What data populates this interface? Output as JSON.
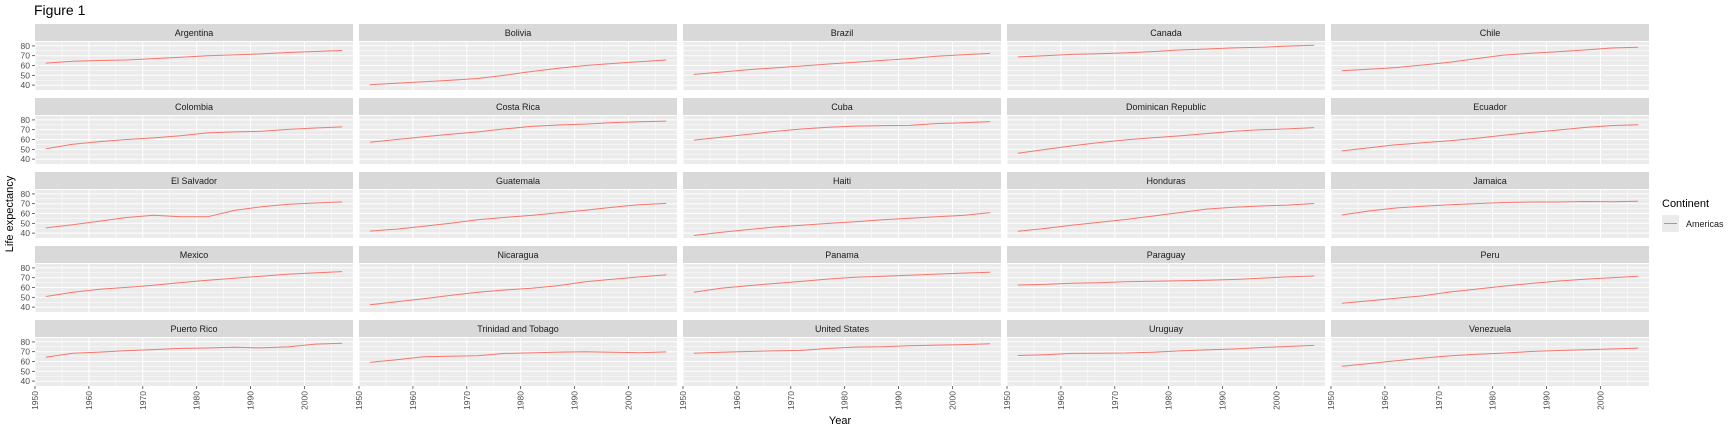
{
  "figure_title": "Figure 1",
  "colors": {
    "panel_bg": "#ebebeb",
    "strip_bg": "#d9d9d9",
    "grid": "#ffffff",
    "line": "#f8766d",
    "text": "#1a1a1a",
    "axis_text": "#4d4d4d"
  },
  "chart_data": {
    "type": "line",
    "layout": "facet-grid",
    "facet_columns": 5,
    "xlabel": "Year",
    "ylabel": "Life expectancy",
    "xlim": [
      1950,
      2009
    ],
    "ylim": [
      35,
      84
    ],
    "x_ticks": [
      1950,
      1960,
      1970,
      1980,
      1990,
      2000
    ],
    "x_tick_labels": [
      "1950",
      "1960",
      "1970",
      "1980",
      "1990",
      "2000"
    ],
    "y_ticks": [
      40,
      50,
      60,
      70,
      80
    ],
    "y_tick_labels": [
      "40",
      "50",
      "60",
      "70",
      "80"
    ],
    "grid": true,
    "legend": {
      "title": "Continent",
      "placement": "right",
      "entries": [
        {
          "label": "Americas",
          "color": "#f8766d"
        }
      ]
    },
    "x": [
      1952,
      1957,
      1962,
      1967,
      1972,
      1977,
      1982,
      1987,
      1992,
      1997,
      2002,
      2007
    ],
    "panels": [
      {
        "name": "Argentina",
        "values": [
          62.5,
          64.4,
          65.1,
          65.6,
          67.1,
          68.5,
          69.9,
          70.8,
          71.9,
          73.3,
          74.3,
          75.3
        ]
      },
      {
        "name": "Bolivia",
        "values": [
          40.4,
          41.9,
          43.4,
          45.0,
          46.7,
          50.0,
          53.9,
          57.3,
          59.96,
          62.1,
          63.9,
          65.6
        ]
      },
      {
        "name": "Brazil",
        "values": [
          50.9,
          53.3,
          55.7,
          57.6,
          59.5,
          61.5,
          63.3,
          65.2,
          67.1,
          69.4,
          71.0,
          72.4
        ]
      },
      {
        "name": "Canada",
        "values": [
          68.8,
          70.0,
          71.3,
          72.1,
          72.9,
          74.2,
          75.8,
          76.9,
          78.0,
          78.6,
          79.8,
          80.7
        ]
      },
      {
        "name": "Chile",
        "values": [
          54.7,
          56.1,
          57.9,
          60.5,
          63.4,
          67.1,
          70.6,
          72.5,
          74.1,
          75.8,
          77.9,
          78.6
        ]
      },
      {
        "name": "Colombia",
        "values": [
          50.6,
          55.1,
          57.9,
          60.0,
          61.6,
          63.8,
          66.7,
          67.8,
          68.4,
          70.3,
          71.7,
          72.9
        ]
      },
      {
        "name": "Costa Rica",
        "values": [
          57.2,
          60.0,
          62.8,
          65.4,
          67.8,
          70.8,
          73.4,
          74.8,
          75.7,
          77.3,
          78.1,
          78.8
        ]
      },
      {
        "name": "Cuba",
        "values": [
          59.4,
          62.3,
          65.2,
          68.3,
          70.7,
          72.6,
          73.7,
          74.2,
          74.4,
          76.2,
          77.2,
          78.3
        ]
      },
      {
        "name": "Dominican Republic",
        "values": [
          45.9,
          49.8,
          53.5,
          56.8,
          59.6,
          61.8,
          63.7,
          66.0,
          68.5,
          69.96,
          70.8,
          72.2
        ]
      },
      {
        "name": "Ecuador",
        "values": [
          48.4,
          51.4,
          54.6,
          56.7,
          58.8,
          61.3,
          64.3,
          67.2,
          69.6,
          72.3,
          74.2,
          75.0
        ]
      },
      {
        "name": "El Salvador",
        "values": [
          45.3,
          48.6,
          52.3,
          55.9,
          58.2,
          56.7,
          56.6,
          63.2,
          66.8,
          69.5,
          70.7,
          71.9
        ]
      },
      {
        "name": "Guatemala",
        "values": [
          42.0,
          44.1,
          47.0,
          50.0,
          53.7,
          56.0,
          58.1,
          60.8,
          63.4,
          66.3,
          68.98,
          70.3
        ]
      },
      {
        "name": "Haiti",
        "values": [
          37.6,
          40.7,
          43.6,
          46.2,
          48.0,
          49.9,
          51.5,
          53.6,
          55.1,
          56.7,
          58.1,
          60.9
        ]
      },
      {
        "name": "Honduras",
        "values": [
          41.9,
          44.7,
          48.0,
          50.9,
          53.9,
          57.4,
          60.9,
          64.5,
          66.4,
          67.7,
          68.6,
          70.2
        ]
      },
      {
        "name": "Jamaica",
        "values": [
          58.5,
          62.6,
          65.6,
          67.5,
          69.0,
          70.1,
          71.2,
          71.8,
          71.8,
          72.3,
          72.0,
          72.6
        ]
      },
      {
        "name": "Mexico",
        "values": [
          50.8,
          55.2,
          58.3,
          60.1,
          62.4,
          65.0,
          67.4,
          69.5,
          71.5,
          73.7,
          74.9,
          76.2
        ]
      },
      {
        "name": "Nicaragua",
        "values": [
          42.3,
          45.4,
          48.6,
          51.9,
          55.2,
          57.5,
          59.3,
          62.0,
          65.8,
          68.4,
          70.8,
          72.9
        ]
      },
      {
        "name": "Panama",
        "values": [
          55.2,
          59.2,
          61.8,
          64.1,
          66.2,
          68.7,
          70.5,
          71.5,
          72.5,
          73.7,
          74.7,
          75.5
        ]
      },
      {
        "name": "Paraguay",
        "values": [
          62.6,
          63.2,
          64.4,
          64.95,
          65.8,
          66.4,
          66.9,
          67.4,
          68.2,
          69.4,
          70.8,
          71.8
        ]
      },
      {
        "name": "Peru",
        "values": [
          43.9,
          46.3,
          49.1,
          51.4,
          55.4,
          58.4,
          61.4,
          64.1,
          66.5,
          68.4,
          69.9,
          71.4
        ]
      },
      {
        "name": "Puerto Rico",
        "values": [
          64.3,
          68.5,
          69.6,
          71.1,
          72.2,
          73.4,
          73.8,
          74.6,
          73.9,
          74.9,
          77.8,
          78.7
        ]
      },
      {
        "name": "Trinidad and Tobago",
        "values": [
          59.1,
          61.8,
          64.9,
          65.4,
          65.9,
          68.3,
          68.8,
          69.6,
          69.9,
          69.5,
          68.98,
          69.8
        ]
      },
      {
        "name": "United States",
        "values": [
          68.4,
          69.5,
          70.2,
          70.8,
          71.3,
          73.4,
          74.7,
          75.0,
          76.1,
          76.8,
          77.3,
          78.2
        ]
      },
      {
        "name": "Uruguay",
        "values": [
          66.1,
          67.0,
          68.3,
          68.5,
          68.7,
          69.5,
          70.8,
          71.9,
          72.8,
          74.2,
          75.3,
          76.4
        ]
      },
      {
        "name": "Venezuela",
        "values": [
          55.1,
          57.9,
          60.8,
          63.5,
          65.7,
          67.5,
          68.6,
          70.2,
          71.2,
          72.1,
          72.8,
          73.7
        ]
      }
    ]
  }
}
